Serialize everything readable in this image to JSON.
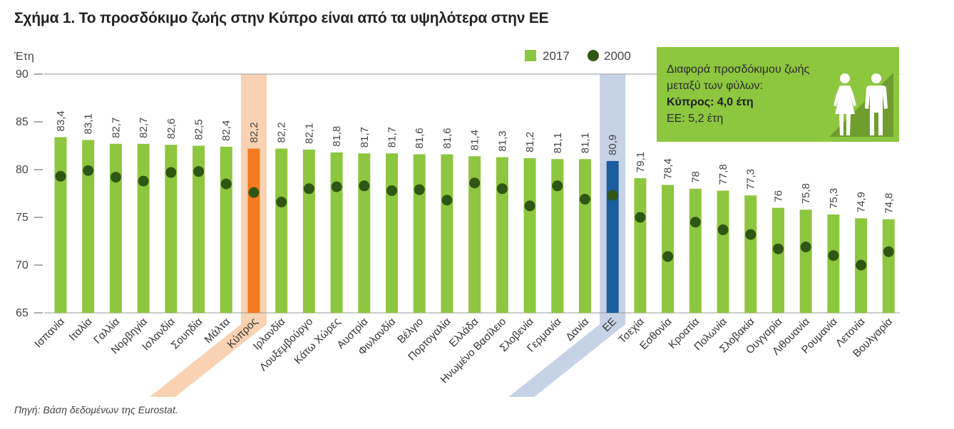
{
  "title": "Σχήμα 1. Το προσδόκιμο ζωής στην Κύπρο είναι από τα υψηλότερα στην ΕΕ",
  "source": "Πηγή: Βάση δεδομένων της Eurostat.",
  "colors": {
    "bar_2017": "#8dc63f",
    "dot_2000": "#2f5614",
    "cyprus_bar": "#f47b20",
    "cyprus_band": "#f8d2b2",
    "eu_bar": "#1b5d9c",
    "eu_band": "#c6d2e6",
    "axis": "#555555",
    "gridline": "#999999"
  },
  "info_box": {
    "line1": "Διαφορά προσδόκιμου ζωής",
    "line2": "μεταξύ των φύλων:",
    "line3": "Κύπρος: 4,0 έτη",
    "line4": "ΕΕ: 5,2 έτη",
    "icons": [
      "female-icon",
      "male-icon"
    ]
  },
  "chart_data": {
    "type": "bar",
    "ylabel": "Έτη",
    "ylim": [
      65,
      90
    ],
    "yticks": [
      65,
      70,
      75,
      80,
      85,
      90
    ],
    "categories": [
      "Ισπανία",
      "Ιταλία",
      "Γαλλία",
      "Νορβηγία",
      "Ισλανδία",
      "Σουηδία",
      "Μάλτα",
      "Κύπρος",
      "Ιρλανδία",
      "Λουξεμβούργο",
      "Κάτω Χώρες",
      "Αυστρία",
      "Φινλανδία",
      "Βέλγιο",
      "Πορτογαλία",
      "Ελλάδα",
      "Ηνωμένο Βασίλειο",
      "Σλοβενία",
      "Γερμανία",
      "Δανία",
      "ΕΕ",
      "Τσεχία",
      "Εσθονία",
      "Κροατία",
      "Πολωνία",
      "Σλοβακία",
      "Ουγγαρία",
      "Λιθουανία",
      "Ρουμανία",
      "Λετονία",
      "Βουλγαρία"
    ],
    "series": [
      {
        "name": "2017",
        "type": "bar",
        "values": [
          83.4,
          83.1,
          82.7,
          82.7,
          82.6,
          82.5,
          82.4,
          82.2,
          82.2,
          82.1,
          81.8,
          81.7,
          81.7,
          81.6,
          81.6,
          81.4,
          81.3,
          81.2,
          81.1,
          81.1,
          80.9,
          79.1,
          78.4,
          78,
          77.8,
          77.3,
          76,
          75.8,
          75.3,
          74.9,
          74.8
        ],
        "labels": [
          "83,4",
          "83,1",
          "82,7",
          "82,7",
          "82,6",
          "82,5",
          "82,4",
          "82,2",
          "82,2",
          "82,1",
          "81,8",
          "81,7",
          "81,7",
          "81,6",
          "81,6",
          "81,4",
          "81,3",
          "81,2",
          "81,1",
          "81,1",
          "80,9",
          "79,1",
          "78,4",
          "78",
          "77,8",
          "77,3",
          "76",
          "75,8",
          "75,3",
          "74,9",
          "74,8"
        ]
      },
      {
        "name": "2000",
        "type": "dot",
        "values": [
          79.3,
          79.9,
          79.2,
          78.8,
          79.7,
          79.8,
          78.5,
          77.6,
          76.6,
          78.0,
          78.2,
          78.3,
          77.8,
          77.9,
          76.8,
          78.6,
          78.0,
          76.2,
          78.3,
          76.9,
          77.3,
          75.0,
          70.9,
          74.5,
          73.7,
          73.2,
          71.7,
          71.9,
          71.0,
          70.0,
          71.4
        ]
      }
    ],
    "highlight": {
      "Κύπρος": "cyprus",
      "ΕΕ": "eu"
    },
    "legend": [
      "2017",
      "2000"
    ],
    "legend_position": "top-right",
    "grid": false
  }
}
